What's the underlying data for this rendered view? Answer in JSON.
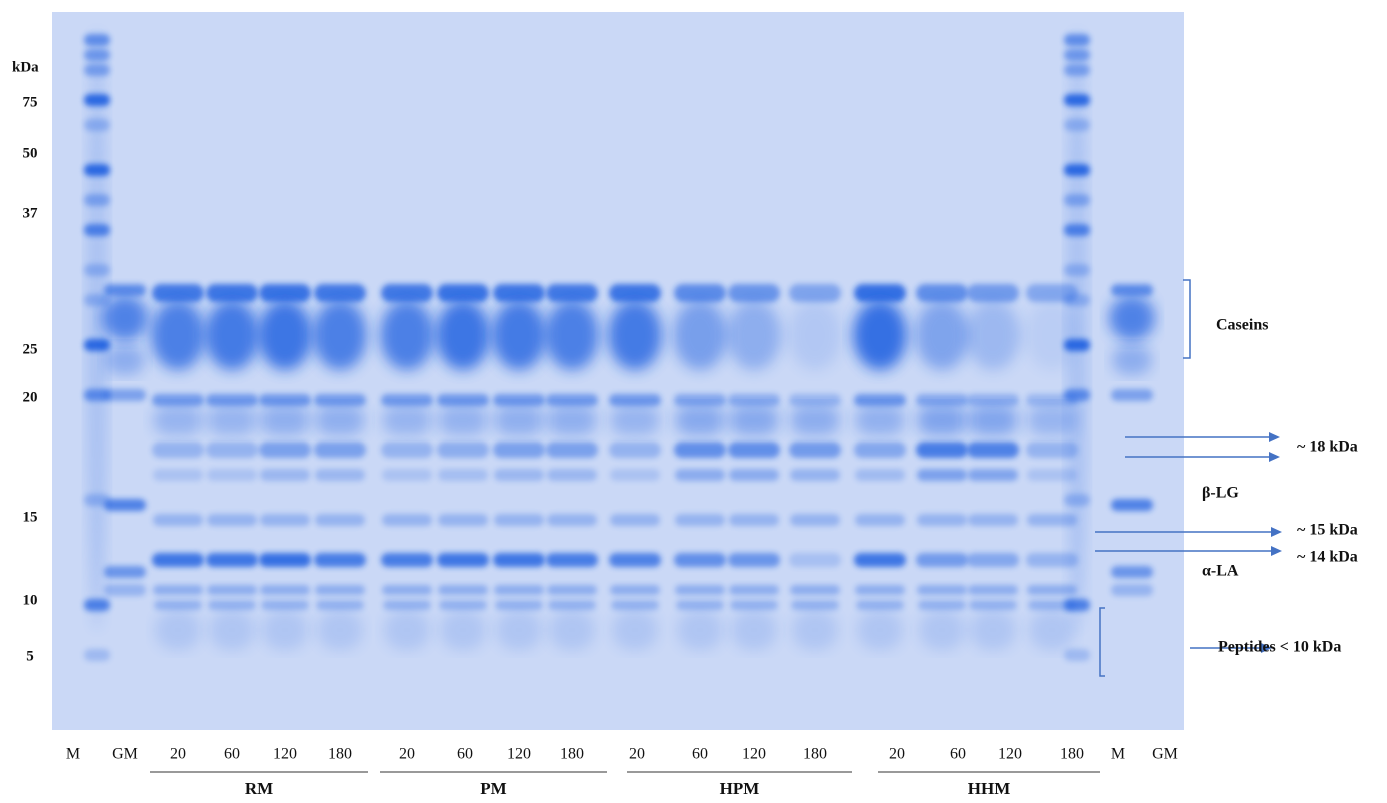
{
  "markers": {
    "unit": "kDa",
    "sizes": [
      75,
      50,
      37,
      25,
      20,
      15,
      10,
      5
    ]
  },
  "lanes": [
    "M",
    "GM",
    "20",
    "60",
    "120",
    "180",
    "20",
    "60",
    "120",
    "180",
    "20",
    "60",
    "120",
    "180",
    "20",
    "60",
    "120",
    "180",
    "M",
    "GM"
  ],
  "groups": [
    "RM",
    "PM",
    "HPM",
    "HHM"
  ],
  "annotations": {
    "caseins": "Caseins",
    "kda18": "~ 18 kDa",
    "blg": "β-LG",
    "kda15": "~ 15 kDa",
    "kda14": "~ 14 kDa",
    "ala": "α-LA",
    "peptides": "Peptides < 10 kDa"
  }
}
